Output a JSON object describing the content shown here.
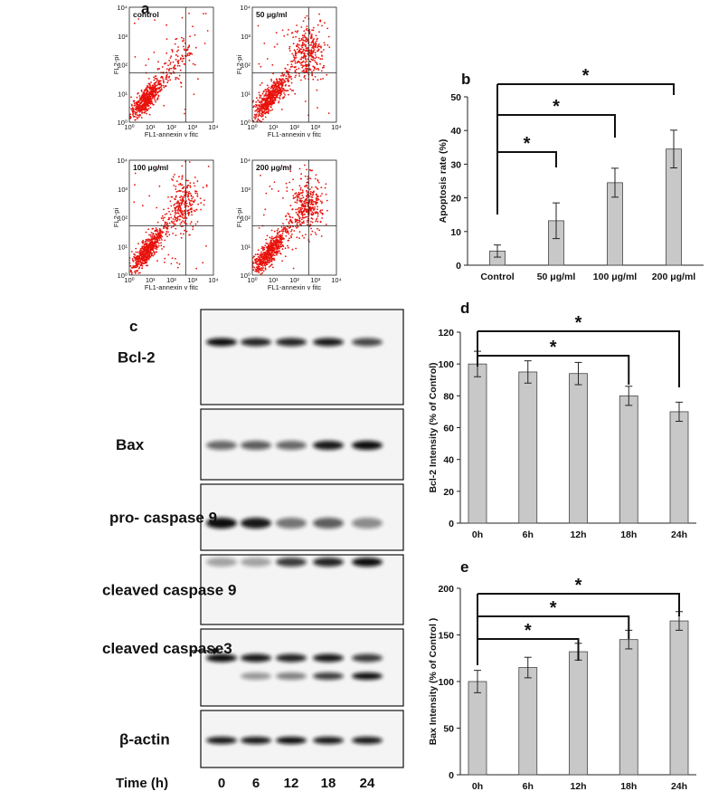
{
  "figure": {
    "panel_labels": [
      "a",
      "b",
      "c",
      "d",
      "e"
    ],
    "panel_a": {
      "x_label": "FL1-annexin v fitc",
      "y_label": "FL2-pi",
      "ticks": [
        "10⁰",
        "10¹",
        "10²",
        "10³",
        "10⁴"
      ],
      "plots": [
        "control",
        "50 μg/ml",
        "100 μg/ml",
        "200 μg/ml"
      ]
    },
    "panel_c": {
      "rows": [
        "Bcl-2",
        "Bax",
        "pro- caspase 9",
        "cleaved caspase 9",
        "cleaved caspase3",
        "β-actin"
      ],
      "time_label": "Time (h)",
      "times": [
        "0",
        "6",
        "12",
        "18",
        "24"
      ]
    }
  },
  "chart_data": [
    {
      "type": "bar",
      "categories": [
        "Control",
        "50 μg/ml",
        "100 μg/ml",
        "200 μg/ml"
      ],
      "values": [
        4.2,
        13.2,
        24.5,
        34.5
      ],
      "errors": [
        1.8,
        5.3,
        4.3,
        5.6
      ],
      "color": "#c8c8c8",
      "ylabel": "Apoptosis rate (%)",
      "ylim": [
        0,
        50
      ],
      "yticks": [
        0,
        10,
        20,
        30,
        40,
        50
      ],
      "significance_labels": [
        "*",
        "*",
        "*"
      ]
    },
    {
      "type": "bar",
      "categories": [
        "0h",
        "6h",
        "12h",
        "18h",
        "24h"
      ],
      "values": [
        100,
        95,
        94,
        80,
        70
      ],
      "errors": [
        8,
        7,
        7,
        6,
        6
      ],
      "color": "#c8c8c8",
      "ylabel": "Bcl-2 Intensity (% of Control)",
      "ylim": [
        0,
        120
      ],
      "yticks": [
        0,
        20,
        40,
        60,
        80,
        100,
        120
      ],
      "significance_labels": [
        "*",
        "*"
      ]
    },
    {
      "type": "bar",
      "categories": [
        "0h",
        "6h",
        "12h",
        "18h",
        "24h"
      ],
      "values": [
        100,
        115,
        132,
        145,
        165
      ],
      "errors": [
        12,
        11,
        9,
        10,
        10
      ],
      "color": "#c8c8c8",
      "ylabel": "Bax Intensity (% of Control )",
      "ylim": [
        0,
        200
      ],
      "yticks": [
        0,
        50,
        100,
        150,
        200
      ],
      "significance_labels": [
        "*",
        "*",
        "*"
      ]
    }
  ]
}
